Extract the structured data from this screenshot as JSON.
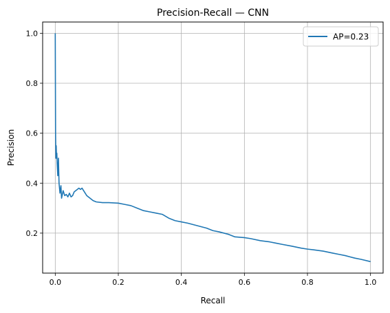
{
  "chart_data": {
    "type": "line",
    "title": "Precision-Recall — CNN",
    "xlabel": "Recall",
    "ylabel": "Precision",
    "xlim": [
      -0.04,
      1.04
    ],
    "ylim": [
      0.04,
      1.045
    ],
    "xticks": [
      0.0,
      0.2,
      0.4,
      0.6,
      0.8,
      1.0
    ],
    "xtick_labels": [
      "0.0",
      "0.2",
      "0.4",
      "0.6",
      "0.8",
      "1.0"
    ],
    "yticks": [
      0.2,
      0.4,
      0.6,
      0.8,
      1.0
    ],
    "ytick_labels": [
      "0.2",
      "0.4",
      "0.6",
      "0.8",
      "1.0"
    ],
    "grid": true,
    "legend_position": "top-right",
    "series": [
      {
        "name": "AP=0.23",
        "color": "#1f77b4",
        "x": [
          0.0,
          0.001,
          0.002,
          0.003,
          0.004,
          0.005,
          0.006,
          0.008,
          0.01,
          0.012,
          0.015,
          0.018,
          0.02,
          0.025,
          0.03,
          0.035,
          0.04,
          0.045,
          0.05,
          0.055,
          0.06,
          0.065,
          0.07,
          0.075,
          0.08,
          0.085,
          0.09,
          0.095,
          0.1,
          0.11,
          0.12,
          0.13,
          0.15,
          0.17,
          0.2,
          0.22,
          0.24,
          0.26,
          0.28,
          0.3,
          0.32,
          0.34,
          0.36,
          0.38,
          0.4,
          0.42,
          0.45,
          0.48,
          0.5,
          0.52,
          0.55,
          0.57,
          0.6,
          0.62,
          0.65,
          0.68,
          0.7,
          0.72,
          0.75,
          0.78,
          0.8,
          0.82,
          0.85,
          0.88,
          0.9,
          0.92,
          0.95,
          0.97,
          1.0
        ],
        "y": [
          1.0,
          0.6,
          0.5,
          0.55,
          0.5,
          0.52,
          0.48,
          0.43,
          0.5,
          0.4,
          0.36,
          0.39,
          0.34,
          0.37,
          0.35,
          0.355,
          0.345,
          0.36,
          0.345,
          0.35,
          0.365,
          0.37,
          0.375,
          0.38,
          0.375,
          0.38,
          0.37,
          0.36,
          0.35,
          0.34,
          0.33,
          0.325,
          0.322,
          0.322,
          0.32,
          0.315,
          0.31,
          0.3,
          0.29,
          0.285,
          0.28,
          0.275,
          0.26,
          0.25,
          0.245,
          0.24,
          0.23,
          0.22,
          0.21,
          0.205,
          0.195,
          0.185,
          0.182,
          0.178,
          0.17,
          0.165,
          0.16,
          0.155,
          0.148,
          0.14,
          0.136,
          0.133,
          0.128,
          0.12,
          0.115,
          0.11,
          0.1,
          0.095,
          0.086
        ]
      }
    ]
  }
}
